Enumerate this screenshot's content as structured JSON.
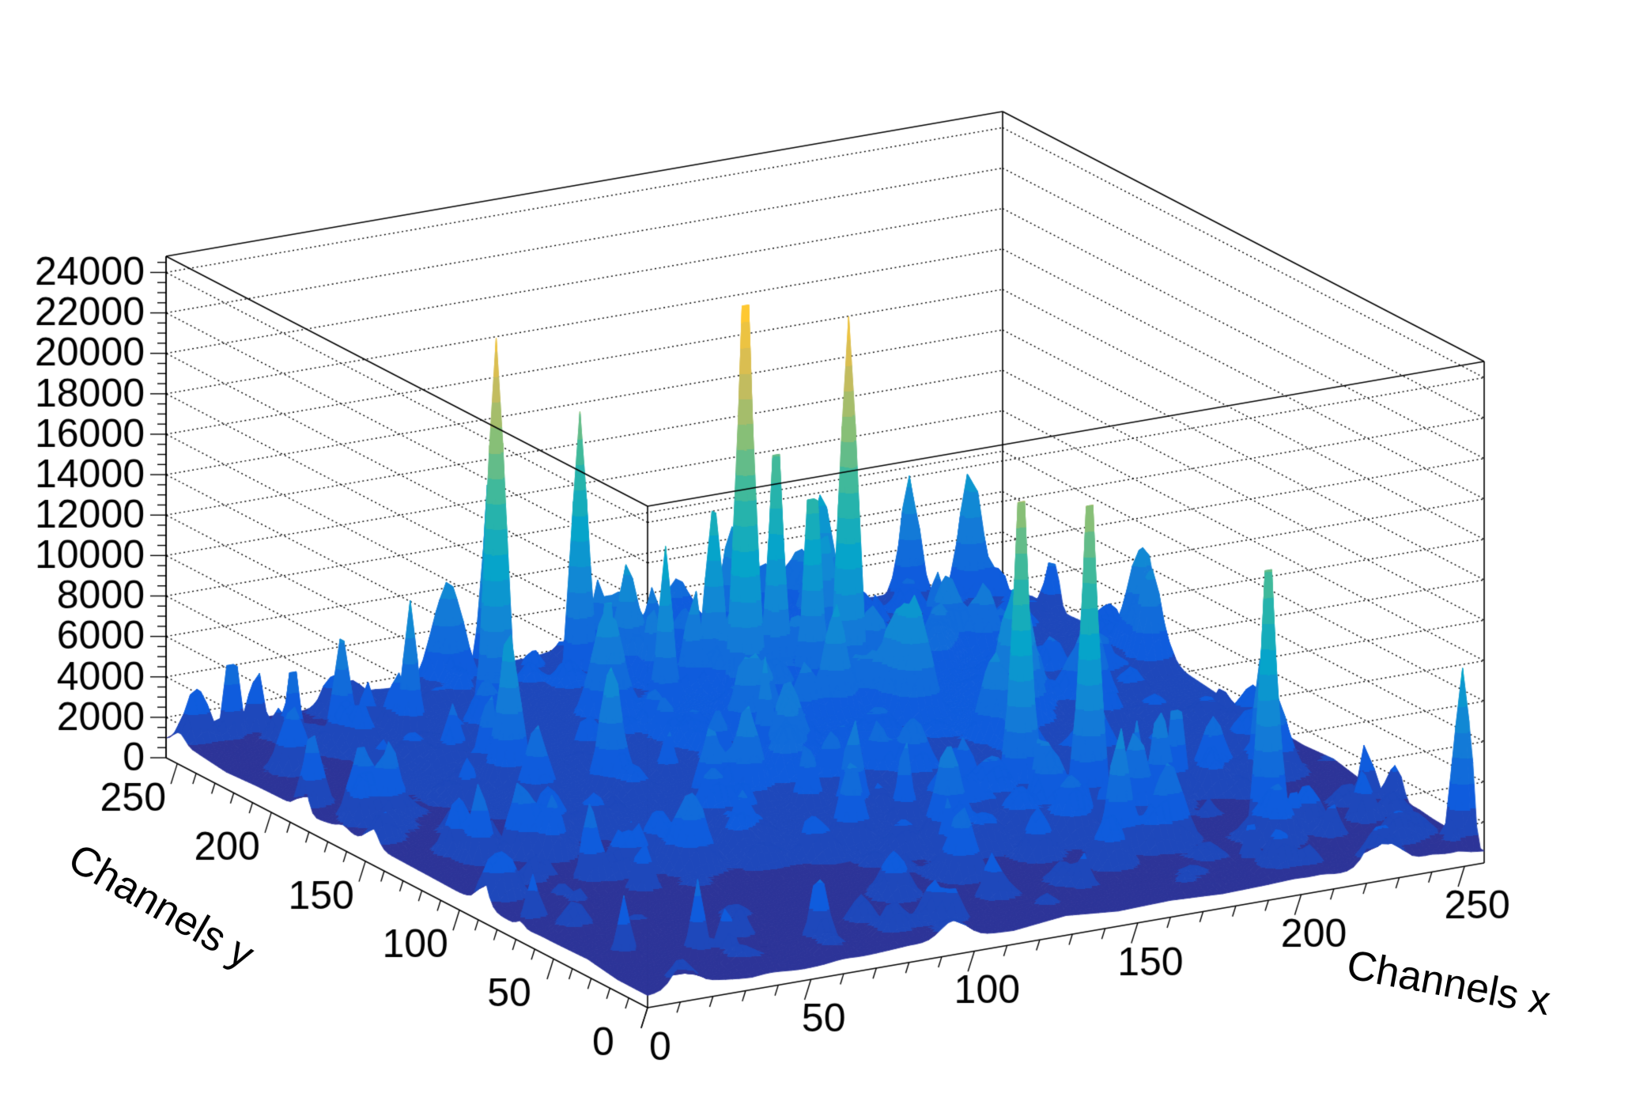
{
  "figure": {
    "background": "#ffffff",
    "frame_color": "#000000"
  },
  "chart_data": {
    "type": "surface3d",
    "title": "",
    "xlabel": "Channels x",
    "ylabel": "Channels y",
    "zlabel": "",
    "x_range": [
      0,
      256
    ],
    "y_range": [
      0,
      256
    ],
    "z_range": [
      0,
      24800
    ],
    "x_ticks": [
      0,
      50,
      100,
      150,
      200,
      250
    ],
    "y_ticks": [
      0,
      50,
      100,
      150,
      200,
      250
    ],
    "z_ticks": [
      0,
      2000,
      4000,
      6000,
      8000,
      10000,
      12000,
      14000,
      16000,
      18000,
      20000,
      22000,
      24000
    ],
    "x_minor_step": 10,
    "y_minor_step": 10,
    "z_minor_step": 500,
    "grid": "dotted-z-levels-on-walls",
    "legend": "none",
    "color_levels": 20,
    "palette": [
      [
        0.0,
        "#352A87"
      ],
      [
        0.125,
        "#0F5CDD"
      ],
      [
        0.25,
        "#1481D6"
      ],
      [
        0.375,
        "#06A4CA"
      ],
      [
        0.5,
        "#2EB7A4"
      ],
      [
        0.625,
        "#87BF77"
      ],
      [
        0.75,
        "#D1BB59"
      ],
      [
        0.875,
        "#FEC832"
      ],
      [
        1.0,
        "#F9FB0E"
      ]
    ],
    "bins": 128,
    "baseline": {
      "level": 520,
      "noise_amp": 380,
      "mound": {
        "cx": 158,
        "cy": 186,
        "sigma": 78,
        "amp": 2100
      }
    },
    "peaks": [
      [
        137,
        186,
        23600,
        2.6
      ],
      [
        78,
        216,
        20500,
        2.6
      ],
      [
        164,
        178,
        21000,
        2.6
      ],
      [
        165,
        88,
        17500,
        2.5
      ],
      [
        179,
        76,
        17500,
        2.5
      ],
      [
        151,
        194,
        15000,
        2.4
      ],
      [
        157,
        185,
        14000,
        2.4
      ],
      [
        136,
        201,
        12000,
        2.4
      ],
      [
        114,
        234,
        15000,
        2.4
      ],
      [
        97,
        252,
        12000,
        2.4
      ],
      [
        116,
        192,
        10300,
        2.3
      ],
      [
        103,
        200,
        8200,
        2.3
      ],
      [
        176,
        197,
        8500,
        2.2
      ],
      [
        213,
        40,
        15000,
        2.4
      ],
      [
        230,
        73,
        8000,
        2.2
      ],
      [
        254,
        8,
        9300,
        2.4
      ],
      [
        205,
        75,
        6500,
        2.2
      ],
      [
        190,
        70,
        5500,
        2.2
      ],
      [
        15,
        247,
        5600,
        2.2
      ],
      [
        25,
        232,
        5200,
        2.2
      ],
      [
        54,
        220,
        8000,
        2.2
      ],
      [
        36,
        225,
        7000,
        2.2
      ],
      [
        28,
        22,
        4500,
        2.0
      ],
      [
        215,
        30,
        3500,
        2.2
      ],
      [
        195,
        18,
        3000,
        2.2
      ],
      [
        10,
        30,
        3800,
        2.0
      ]
    ],
    "random_spikes": {
      "seed": 1337,
      "attempts": 560,
      "amp_min": 600,
      "amp_mean": 1200,
      "amp_max": 6800,
      "sigma_min": 1.6,
      "sigma_max": 4.2,
      "focus": {
        "cx": 150,
        "cy": 175,
        "sigma": 90,
        "floor": 0.28
      }
    }
  }
}
